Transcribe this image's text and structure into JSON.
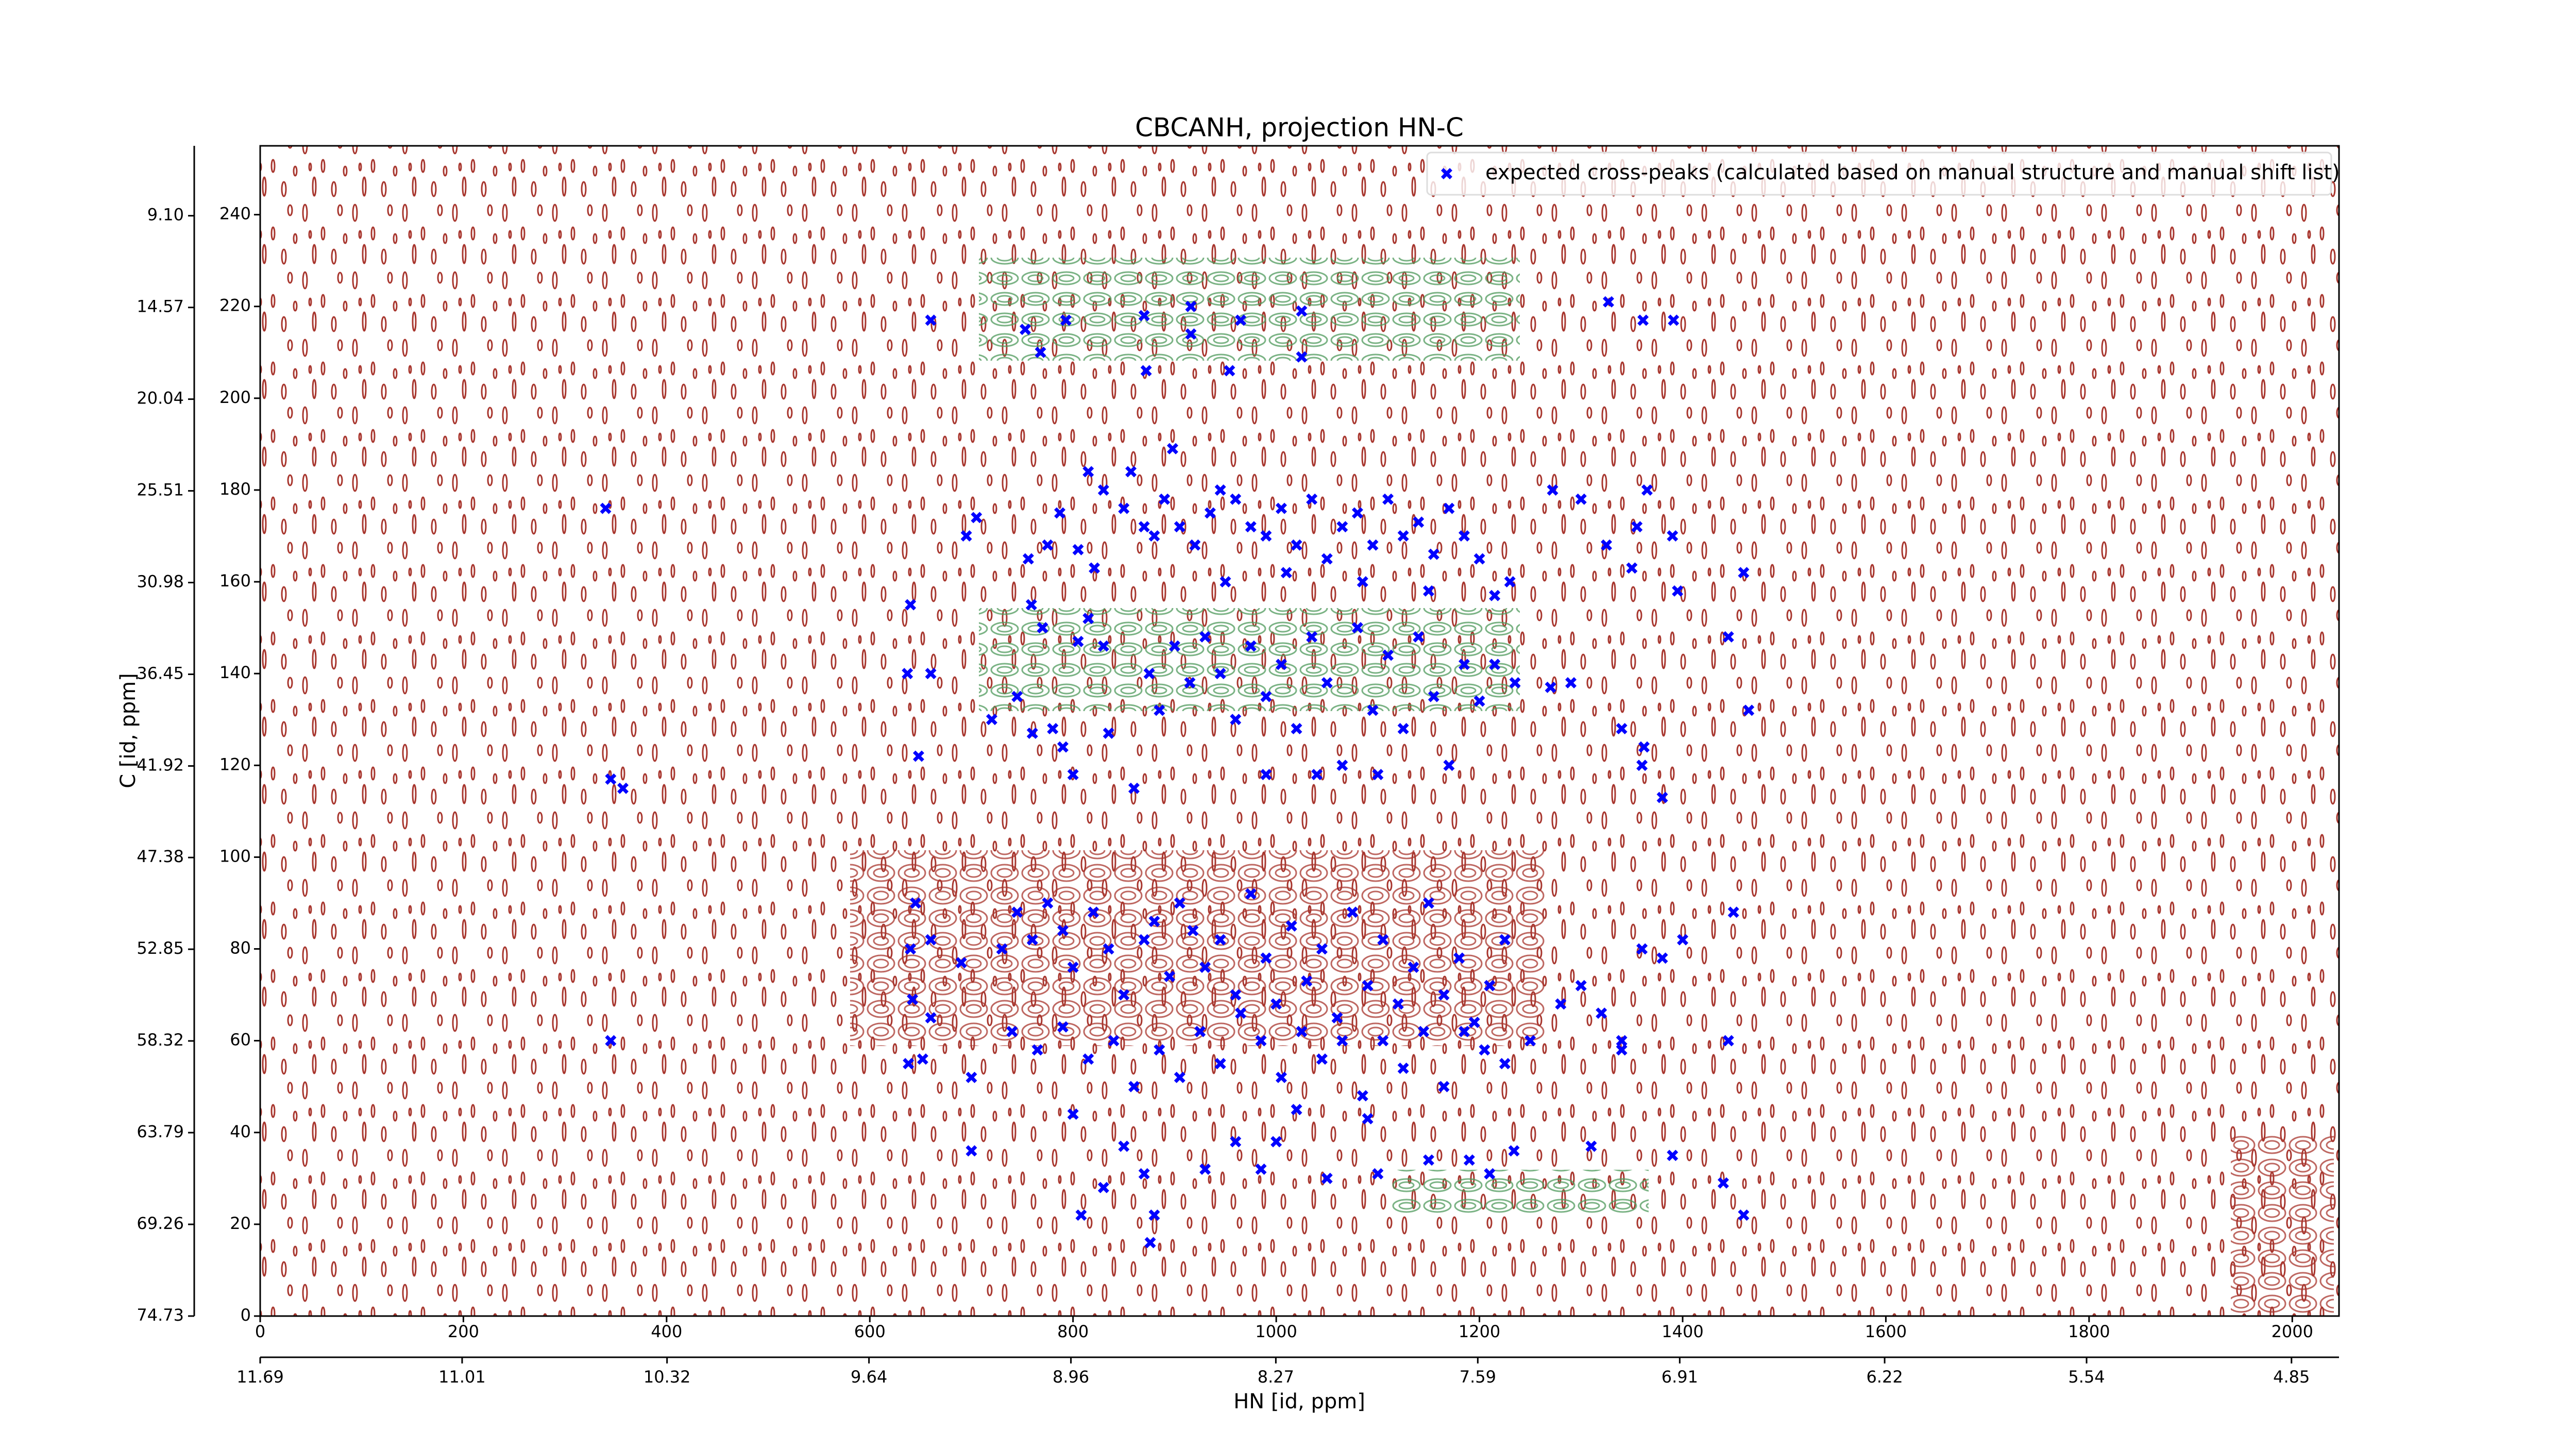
{
  "chart_data": {
    "type": "scatter",
    "title": "CBCANH, projection HN-C",
    "x_label": "HN [id, ppm]",
    "y_label": "C [id, ppm]",
    "xlim": [
      0,
      2046
    ],
    "xticks": [
      0,
      200,
      400,
      600,
      800,
      1000,
      1200,
      1400,
      1600,
      1800,
      2000
    ],
    "ylim": [
      0,
      255
    ],
    "yticks": [
      0,
      20,
      40,
      60,
      80,
      100,
      120,
      140,
      160,
      180,
      200,
      220,
      240
    ],
    "x2lim": [
      11.69,
      4.69
    ],
    "x2ticks": [
      11.69,
      11.01,
      10.32,
      9.64,
      8.96,
      8.27,
      7.59,
      6.91,
      6.22,
      5.54,
      4.85
    ],
    "y2lim": [
      74.73,
      4.93
    ],
    "y2ticks": [
      74.73,
      69.26,
      63.79,
      58.32,
      52.85,
      47.38,
      41.92,
      36.45,
      30.98,
      25.51,
      20.04,
      14.57,
      {
        "value": 9.1,
        "label": "9.10"
      }
    ],
    "legend": "upper right",
    "series": [
      {
        "name": "expected cross-peaks (calculated based on manual structure and manual shift list)",
        "color": "#0000ff",
        "x": [
          660,
          753,
          768,
          793,
          870,
          916,
          916,
          965,
          1025,
          1025,
          872,
          954,
          1327,
          1361,
          1391,
          340,
          345,
          357,
          345,
          640,
          637,
          660,
          648,
          640,
          642,
          652,
          660,
          638,
          898,
          857,
          830,
          815,
          787,
          805,
          821,
          756,
          759,
          695,
          705,
          775,
          815,
          830,
          850,
          870,
          880,
          890,
          905,
          920,
          935,
          945,
          960,
          975,
          990,
          1005,
          1020,
          1035,
          1050,
          1065,
          1080,
          1095,
          1110,
          1125,
          1140,
          1155,
          1170,
          1185,
          1200,
          1230,
          1272,
          1300,
          1325,
          1350,
          1355,
          1365,
          1390,
          1395,
          1460,
          950,
          1010,
          1085,
          1150,
          1215,
          720,
          745,
          760,
          780,
          790,
          800,
          835,
          860,
          875,
          885,
          900,
          915,
          930,
          945,
          960,
          975,
          990,
          1005,
          1020,
          1035,
          1050,
          1065,
          1080,
          1095,
          1110,
          1125,
          1140,
          1155,
          1170,
          1185,
          1200,
          1215,
          1235,
          1270,
          1290,
          1340,
          1360,
          1362,
          1380,
          1445,
          1465,
          805,
          770,
          990,
          1040,
          1100,
          645,
          660,
          690,
          730,
          745,
          760,
          775,
          790,
          800,
          820,
          835,
          850,
          870,
          880,
          895,
          905,
          918,
          930,
          945,
          960,
          975,
          990,
          1000,
          1015,
          1030,
          1045,
          1060,
          1075,
          1090,
          1105,
          1120,
          1135,
          1150,
          1165,
          1180,
          1195,
          1210,
          1225,
          1250,
          1280,
          1300,
          1320,
          1340,
          1360,
          1380,
          1400,
          1450,
          1445,
          740,
          765,
          790,
          815,
          840,
          860,
          885,
          905,
          925,
          945,
          965,
          985,
          1005,
          1025,
          1045,
          1065,
          1085,
          1105,
          1125,
          1145,
          1165,
          1185,
          1205,
          1225,
          1340,
          700,
          700,
          800,
          850,
          870,
          880,
          930,
          960,
          985,
          1000,
          1050,
          1100,
          1150,
          1190,
          1210,
          1234,
          1310,
          1390,
          1440,
          1460,
          808,
          876,
          830,
          1090,
          1020
        ],
        "values": [
          217,
          215,
          210,
          217,
          218,
          220,
          214,
          217,
          219,
          209,
          206,
          206,
          221,
          217,
          217,
          176,
          117,
          115,
          60,
          155,
          140,
          140,
          122,
          80,
          69,
          56,
          65,
          55,
          189,
          184,
          180,
          184,
          175,
          167,
          163,
          165,
          155,
          170,
          174,
          168,
          152,
          146,
          176,
          172,
          170,
          178,
          172,
          168,
          175,
          180,
          178,
          172,
          170,
          176,
          168,
          178,
          165,
          172,
          175,
          168,
          178,
          170,
          173,
          166,
          176,
          170,
          165,
          160,
          180,
          178,
          168,
          163,
          172,
          180,
          170,
          158,
          162,
          160,
          162,
          160,
          158,
          157,
          130,
          135,
          127,
          128,
          124,
          118,
          127,
          115,
          140,
          132,
          146,
          138,
          148,
          140,
          130,
          146,
          135,
          142,
          128,
          148,
          138,
          120,
          150,
          132,
          144,
          128,
          148,
          135,
          120,
          142,
          134,
          142,
          138,
          137,
          138,
          128,
          120,
          124,
          113,
          148,
          132,
          147,
          150,
          118,
          118,
          118,
          90,
          82,
          77,
          80,
          88,
          82,
          90,
          84,
          76,
          88,
          80,
          70,
          82,
          86,
          74,
          90,
          84,
          76,
          82,
          70,
          92,
          78,
          68,
          85,
          73,
          80,
          65,
          88,
          72,
          82,
          68,
          76,
          90,
          70,
          78,
          64,
          72,
          82,
          60,
          68,
          72,
          66,
          60,
          80,
          78,
          82,
          88,
          60,
          62,
          58,
          63,
          56,
          60,
          50,
          58,
          52,
          62,
          55,
          66,
          60,
          52,
          62,
          56,
          60,
          48,
          60,
          54,
          62,
          50,
          62,
          58,
          55,
          58,
          52,
          36,
          44,
          37,
          31,
          22,
          32,
          38,
          32,
          38,
          30,
          31,
          34,
          34,
          31,
          36,
          37,
          35,
          29,
          22,
          22,
          16,
          28,
          43,
          45
        ]
      }
    ]
  }
}
